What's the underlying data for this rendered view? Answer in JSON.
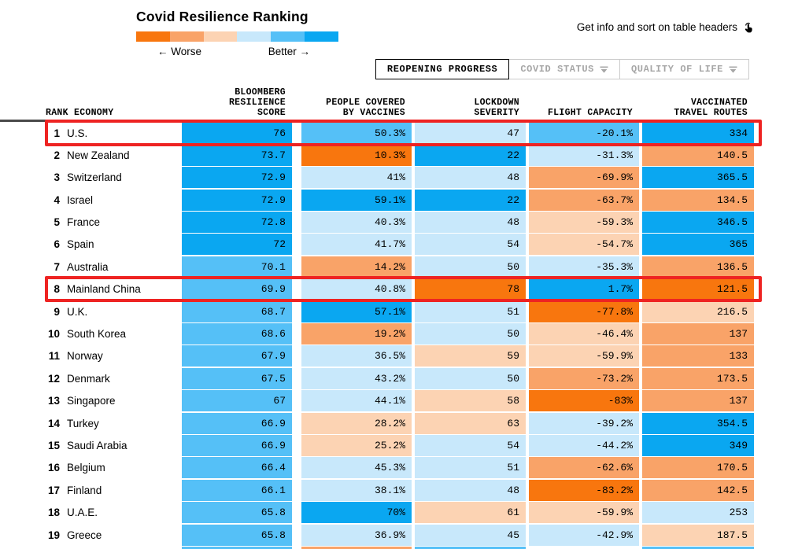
{
  "palette": {
    "blue3": "#0aa7f1",
    "blue2": "#55c0f7",
    "blue1": "#c8e8fb",
    "orange3": "#f8760e",
    "orange2": "#f9a368",
    "orange1": "#fcd3b3",
    "none": "transparent",
    "highlight_red": "#ee2322",
    "header_rule_gray": "#4a4a4a",
    "inactive_tab_gray": "#a6a6a6"
  },
  "header": {
    "title": "Covid Resilience Ranking",
    "legend_worse": "← Worse",
    "legend_better": "Better →",
    "legend_segments": [
      "orange3",
      "orange2",
      "orange1",
      "blue1",
      "blue2",
      "blue3"
    ],
    "hint": "Get info and sort on table headers",
    "tabs": [
      {
        "label": "REOPENING PROGRESS",
        "active": true,
        "dropdown": false
      },
      {
        "label": "COVID STATUS",
        "active": false,
        "dropdown": true
      },
      {
        "label": "QUALITY OF LIFE",
        "active": false,
        "dropdown": true
      }
    ]
  },
  "table": {
    "headers": [
      "RANK ECONOMY",
      "BLOOMBERG\nRESILIENCE\nSCORE",
      "PEOPLE COVERED\nBY VACCINES",
      "LOCKDOWN\nSEVERITY",
      "FLIGHT CAPACITY",
      "VACCINATED\nTRAVEL ROUTES"
    ],
    "rows": [
      {
        "rank": "1",
        "economy": "U.S.",
        "highlighted": true,
        "cells": [
          {
            "v": "76",
            "c": "blue3"
          },
          {
            "v": "50.3%",
            "c": "blue2"
          },
          {
            "v": "47",
            "c": "blue1"
          },
          {
            "v": "-20.1%",
            "c": "blue2"
          },
          {
            "v": "334",
            "c": "blue3"
          }
        ]
      },
      {
        "rank": "2",
        "economy": "New Zealand",
        "highlighted": false,
        "cells": [
          {
            "v": "73.7",
            "c": "blue3"
          },
          {
            "v": "10.3%",
            "c": "orange3"
          },
          {
            "v": "22",
            "c": "blue3"
          },
          {
            "v": "-31.3%",
            "c": "blue1"
          },
          {
            "v": "140.5",
            "c": "orange2"
          }
        ]
      },
      {
        "rank": "3",
        "economy": "Switzerland",
        "highlighted": false,
        "cells": [
          {
            "v": "72.9",
            "c": "blue3"
          },
          {
            "v": "41%",
            "c": "blue1"
          },
          {
            "v": "48",
            "c": "blue1"
          },
          {
            "v": "-69.9%",
            "c": "orange2"
          },
          {
            "v": "365.5",
            "c": "blue3"
          }
        ]
      },
      {
        "rank": "4",
        "economy": "Israel",
        "highlighted": false,
        "cells": [
          {
            "v": "72.9",
            "c": "blue3"
          },
          {
            "v": "59.1%",
            "c": "blue3"
          },
          {
            "v": "22",
            "c": "blue3"
          },
          {
            "v": "-63.7%",
            "c": "orange2"
          },
          {
            "v": "134.5",
            "c": "orange2"
          }
        ]
      },
      {
        "rank": "5",
        "economy": "France",
        "highlighted": false,
        "cells": [
          {
            "v": "72.8",
            "c": "blue3"
          },
          {
            "v": "40.3%",
            "c": "blue1"
          },
          {
            "v": "48",
            "c": "blue1"
          },
          {
            "v": "-59.3%",
            "c": "orange1"
          },
          {
            "v": "346.5",
            "c": "blue3"
          }
        ]
      },
      {
        "rank": "6",
        "economy": "Spain",
        "highlighted": false,
        "cells": [
          {
            "v": "72",
            "c": "blue3"
          },
          {
            "v": "41.7%",
            "c": "blue1"
          },
          {
            "v": "54",
            "c": "blue1"
          },
          {
            "v": "-54.7%",
            "c": "orange1"
          },
          {
            "v": "365",
            "c": "blue3"
          }
        ]
      },
      {
        "rank": "7",
        "economy": "Australia",
        "highlighted": false,
        "cells": [
          {
            "v": "70.1",
            "c": "blue2"
          },
          {
            "v": "14.2%",
            "c": "orange2"
          },
          {
            "v": "50",
            "c": "blue1"
          },
          {
            "v": "-35.3%",
            "c": "blue1"
          },
          {
            "v": "136.5",
            "c": "orange2"
          }
        ]
      },
      {
        "rank": "8",
        "economy": "Mainland China",
        "highlighted": true,
        "cells": [
          {
            "v": "69.9",
            "c": "blue2"
          },
          {
            "v": "40.8%",
            "c": "blue1"
          },
          {
            "v": "78",
            "c": "orange3"
          },
          {
            "v": "1.7%",
            "c": "blue3"
          },
          {
            "v": "121.5",
            "c": "orange3"
          }
        ]
      },
      {
        "rank": "9",
        "economy": "U.K.",
        "highlighted": false,
        "cells": [
          {
            "v": "68.7",
            "c": "blue2"
          },
          {
            "v": "57.1%",
            "c": "blue3"
          },
          {
            "v": "51",
            "c": "blue1"
          },
          {
            "v": "-77.8%",
            "c": "orange3"
          },
          {
            "v": "216.5",
            "c": "orange1"
          }
        ]
      },
      {
        "rank": "10",
        "economy": "South Korea",
        "highlighted": false,
        "cells": [
          {
            "v": "68.6",
            "c": "blue2"
          },
          {
            "v": "19.2%",
            "c": "orange2"
          },
          {
            "v": "50",
            "c": "blue1"
          },
          {
            "v": "-46.4%",
            "c": "orange1"
          },
          {
            "v": "137",
            "c": "orange2"
          }
        ]
      },
      {
        "rank": "11",
        "economy": "Norway",
        "highlighted": false,
        "cells": [
          {
            "v": "67.9",
            "c": "blue2"
          },
          {
            "v": "36.5%",
            "c": "blue1"
          },
          {
            "v": "59",
            "c": "orange1"
          },
          {
            "v": "-59.9%",
            "c": "orange1"
          },
          {
            "v": "133",
            "c": "orange2"
          }
        ]
      },
      {
        "rank": "12",
        "economy": "Denmark",
        "highlighted": false,
        "cells": [
          {
            "v": "67.5",
            "c": "blue2"
          },
          {
            "v": "43.2%",
            "c": "blue1"
          },
          {
            "v": "50",
            "c": "blue1"
          },
          {
            "v": "-73.2%",
            "c": "orange2"
          },
          {
            "v": "173.5",
            "c": "orange2"
          }
        ]
      },
      {
        "rank": "13",
        "economy": "Singapore",
        "highlighted": false,
        "cells": [
          {
            "v": "67",
            "c": "blue2"
          },
          {
            "v": "44.1%",
            "c": "blue1"
          },
          {
            "v": "58",
            "c": "orange1"
          },
          {
            "v": "-83%",
            "c": "orange3"
          },
          {
            "v": "137",
            "c": "orange2"
          }
        ]
      },
      {
        "rank": "14",
        "economy": "Turkey",
        "highlighted": false,
        "cells": [
          {
            "v": "66.9",
            "c": "blue2"
          },
          {
            "v": "28.2%",
            "c": "orange1"
          },
          {
            "v": "63",
            "c": "orange1"
          },
          {
            "v": "-39.2%",
            "c": "blue1"
          },
          {
            "v": "354.5",
            "c": "blue3"
          }
        ]
      },
      {
        "rank": "15",
        "economy": "Saudi Arabia",
        "highlighted": false,
        "cells": [
          {
            "v": "66.9",
            "c": "blue2"
          },
          {
            "v": "25.2%",
            "c": "orange1"
          },
          {
            "v": "54",
            "c": "blue1"
          },
          {
            "v": "-44.2%",
            "c": "blue1"
          },
          {
            "v": "349",
            "c": "blue3"
          }
        ]
      },
      {
        "rank": "16",
        "economy": "Belgium",
        "highlighted": false,
        "cells": [
          {
            "v": "66.4",
            "c": "blue2"
          },
          {
            "v": "45.3%",
            "c": "blue1"
          },
          {
            "v": "51",
            "c": "blue1"
          },
          {
            "v": "-62.6%",
            "c": "orange2"
          },
          {
            "v": "170.5",
            "c": "orange2"
          }
        ]
      },
      {
        "rank": "17",
        "economy": "Finland",
        "highlighted": false,
        "cells": [
          {
            "v": "66.1",
            "c": "blue2"
          },
          {
            "v": "38.1%",
            "c": "blue1"
          },
          {
            "v": "48",
            "c": "blue1"
          },
          {
            "v": "-83.2%",
            "c": "orange3"
          },
          {
            "v": "142.5",
            "c": "orange2"
          }
        ]
      },
      {
        "rank": "18",
        "economy": "U.A.E.",
        "highlighted": false,
        "cells": [
          {
            "v": "65.8",
            "c": "blue2"
          },
          {
            "v": "70%",
            "c": "blue3"
          },
          {
            "v": "61",
            "c": "orange1"
          },
          {
            "v": "-59.9%",
            "c": "orange1"
          },
          {
            "v": "253",
            "c": "blue1"
          }
        ]
      },
      {
        "rank": "19",
        "economy": "Greece",
        "highlighted": false,
        "cells": [
          {
            "v": "65.8",
            "c": "blue2"
          },
          {
            "v": "36.9%",
            "c": "blue1"
          },
          {
            "v": "45",
            "c": "blue1"
          },
          {
            "v": "-42.9%",
            "c": "blue1"
          },
          {
            "v": "187.5",
            "c": "orange1"
          }
        ]
      }
    ],
    "partial_row_colors": [
      "blue2",
      "orange2",
      "blue2",
      "none",
      "blue2"
    ]
  }
}
